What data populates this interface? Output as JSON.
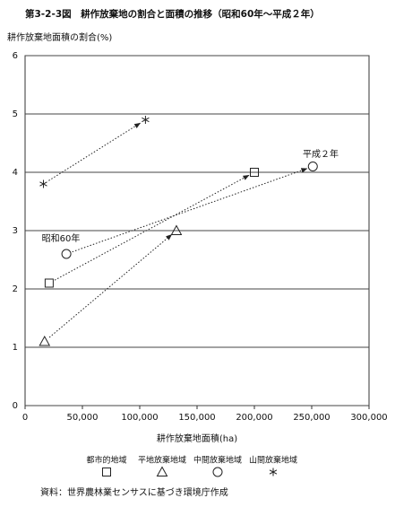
{
  "chart_data": {
    "type": "scatter",
    "title": "第3-2-3図　耕作放棄地の割合と面積の推移（昭和60年～平成２年）",
    "ylabel": "耕作放棄地面積の割合(%)",
    "xlabel": "耕作放棄地面積(ha)",
    "source": "資料：世界農林業センサスに基づき環境庁作成",
    "annotations": [
      "昭和60年",
      "平成２年"
    ],
    "xlim": [
      0,
      300000
    ],
    "xticks": [
      0,
      {
        "value": 50000,
        "label": "50,000"
      },
      {
        "value": 100000,
        "label": "100,000"
      },
      {
        "value": 150000,
        "label": "150,000"
      },
      {
        "value": 200000,
        "label": "200,000"
      },
      {
        "value": 250000,
        "label": "250,000"
      },
      {
        "value": 300000,
        "label": "300,000"
      }
    ],
    "ylim": [
      0,
      6
    ],
    "yticks": [
      0,
      1,
      2,
      3,
      4,
      5,
      6
    ],
    "grid": true,
    "color": "#222222",
    "series": [
      {
        "name": "都市的地域",
        "marker": "square",
        "x": [
          21000,
          200000
        ],
        "values": [
          2.1,
          4.0
        ]
      },
      {
        "name": "平地放棄地域",
        "marker": "triangle",
        "x": [
          17000,
          132000
        ],
        "values": [
          1.1,
          3.0
        ]
      },
      {
        "name": "中間放棄地域",
        "marker": "circle",
        "x": [
          36000,
          251000
        ],
        "values": [
          2.6,
          4.1
        ]
      },
      {
        "name": "山間放棄地域",
        "marker": "asterisk",
        "x": [
          16000,
          105000
        ],
        "values": [
          3.8,
          4.9
        ]
      }
    ]
  }
}
